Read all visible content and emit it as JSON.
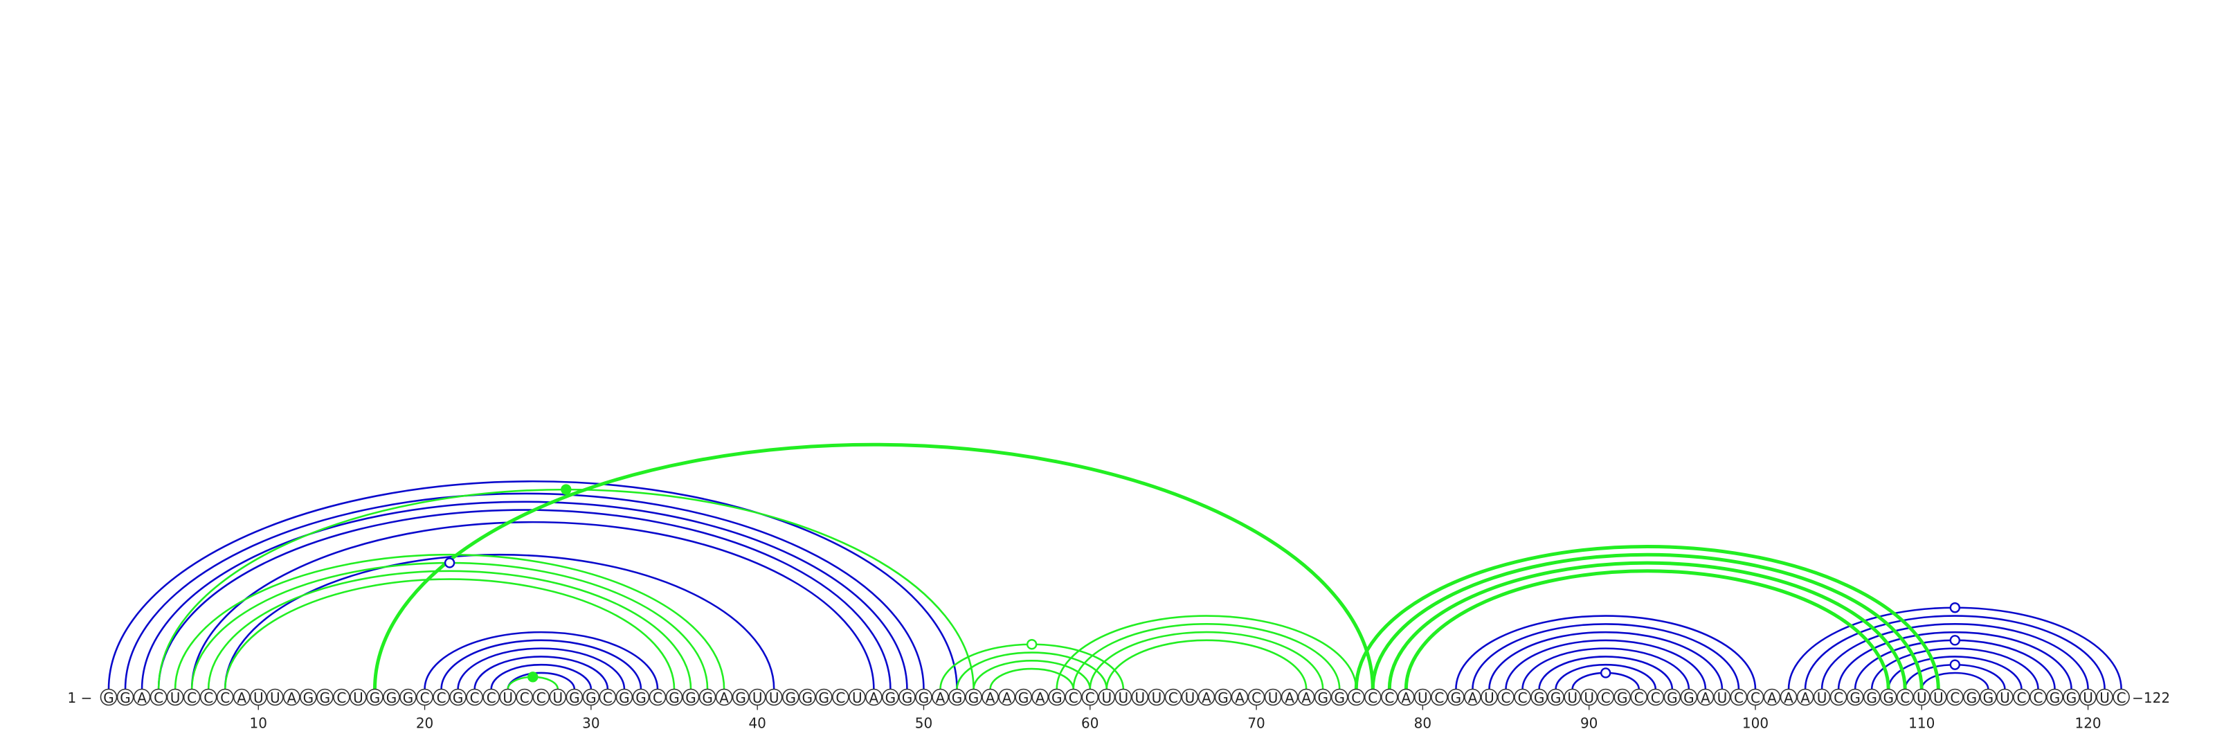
{
  "diagram": {
    "type": "rna-arc-diagram",
    "sequence": "GGACUCCCAUUAGGCUGGGCCGCCUCCUGGCGGCGGGAGUUGGGCUAGGGAGGAAGAGCCUUUUCUAGACUAAGGCCCAUCGAUCCGGUUCGCCGGAUCCAAAUCGGGCUUCGGUCCGGUUC",
    "start_label": "1",
    "end_label": "122",
    "tick_labels": [
      "10",
      "20",
      "30",
      "40",
      "50",
      "60",
      "70",
      "80",
      "90",
      "100",
      "110",
      "120"
    ],
    "colors": {
      "blue": "#0a0acc",
      "green": "#22ee22",
      "nucleotide_stroke": "#333333"
    },
    "helices": [
      {
        "color": "blue",
        "pairs": [
          [
            1,
            52
          ],
          [
            2,
            50
          ],
          [
            3,
            49
          ],
          [
            4,
            48
          ],
          [
            6,
            47
          ],
          [
            8,
            41
          ]
        ]
      },
      {
        "color": "blue",
        "pairs": [
          [
            20,
            34
          ],
          [
            21,
            33
          ],
          [
            22,
            32
          ],
          [
            23,
            31
          ],
          [
            24,
            30
          ],
          [
            25,
            29
          ]
        ]
      },
      {
        "color": "blue",
        "pairs": [
          [
            82,
            100
          ],
          [
            83,
            99
          ],
          [
            84,
            98
          ],
          [
            85,
            97
          ],
          [
            86,
            96
          ],
          [
            87,
            95
          ],
          [
            88,
            94
          ],
          [
            89,
            93
          ]
        ]
      },
      {
        "color": "blue",
        "pairs": [
          [
            102,
            122
          ],
          [
            103,
            121
          ],
          [
            104,
            120
          ],
          [
            105,
            119
          ],
          [
            106,
            118
          ],
          [
            107,
            117
          ],
          [
            108,
            116
          ],
          [
            109,
            115
          ],
          [
            110,
            114
          ]
        ]
      },
      {
        "color": "green",
        "pairs": [
          [
            4,
            53
          ],
          [
            5,
            38
          ],
          [
            6,
            37
          ],
          [
            7,
            36
          ],
          [
            8,
            35
          ]
        ]
      },
      {
        "color": "green",
        "pairs": [
          [
            25,
            28
          ]
        ]
      },
      {
        "color": "green",
        "pairs": [
          [
            17,
            77
          ]
        ],
        "bold": true
      },
      {
        "color": "green",
        "pairs": [
          [
            51,
            62
          ],
          [
            52,
            61
          ],
          [
            53,
            60
          ],
          [
            54,
            59
          ]
        ]
      },
      {
        "color": "green",
        "pairs": [
          [
            58,
            76
          ],
          [
            59,
            75
          ],
          [
            60,
            74
          ],
          [
            61,
            73
          ]
        ]
      },
      {
        "color": "green",
        "pairs": [
          [
            76,
            111
          ],
          [
            77,
            110
          ],
          [
            78,
            109
          ],
          [
            79,
            108
          ]
        ],
        "bold": true
      }
    ],
    "markers": [
      {
        "color": "blue",
        "filled": false,
        "pair": [
          6,
          37
        ]
      },
      {
        "color": "green",
        "filled": true,
        "pair": [
          4,
          53
        ]
      },
      {
        "color": "green",
        "filled": true,
        "pair": [
          25,
          28
        ]
      },
      {
        "color": "green",
        "filled": false,
        "pair": [
          51,
          62
        ]
      },
      {
        "color": "blue",
        "filled": false,
        "pair": [
          89,
          93
        ]
      },
      {
        "color": "blue",
        "filled": false,
        "pair": [
          102,
          122
        ]
      },
      {
        "color": "blue",
        "filled": false,
        "pair": [
          106,
          118
        ]
      },
      {
        "color": "blue",
        "filled": false,
        "pair": [
          109,
          115
        ]
      }
    ]
  }
}
